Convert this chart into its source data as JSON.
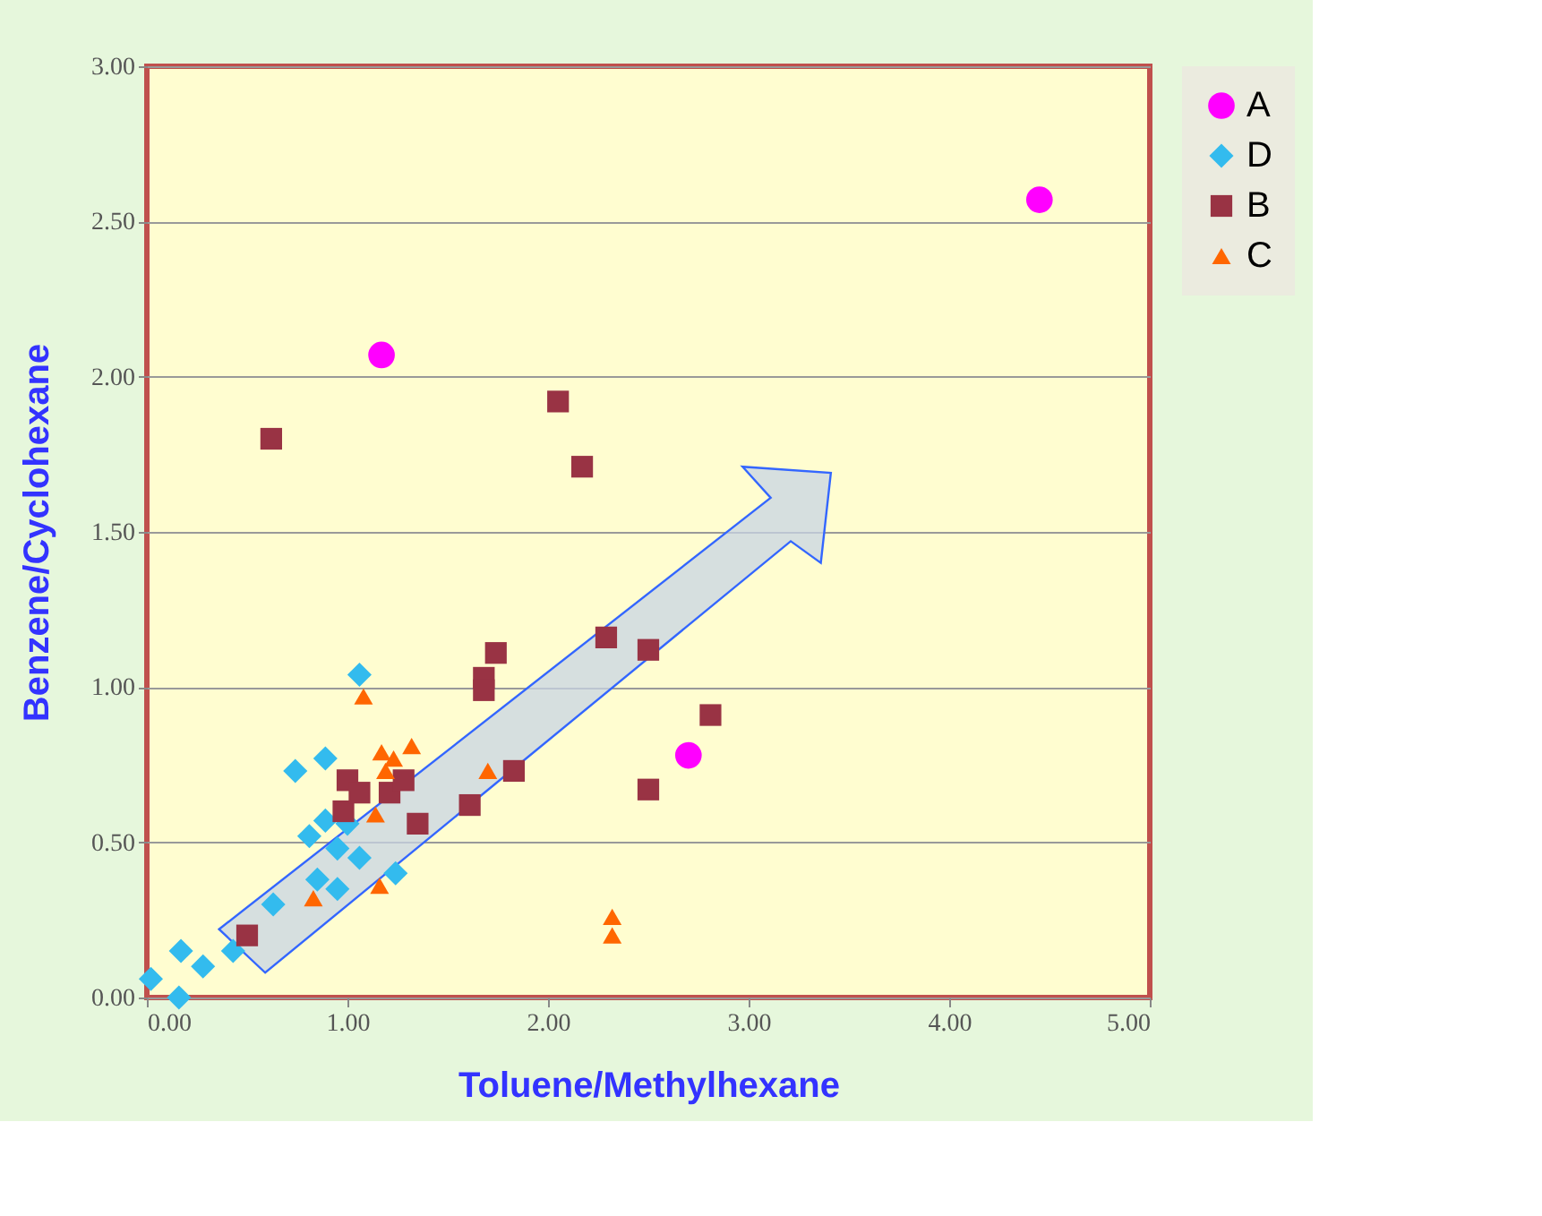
{
  "chart_data": {
    "type": "scatter",
    "xlabel": "Toluene/Methylhexane",
    "ylabel": "Benzene/Cyclohexane",
    "xlim": [
      0,
      5
    ],
    "ylim": [
      0,
      3
    ],
    "xticks": [
      {
        "value": 0,
        "label": "0.00"
      },
      {
        "value": 1,
        "label": "1.00"
      },
      {
        "value": 2,
        "label": "2.00"
      },
      {
        "value": 3,
        "label": "3.00"
      },
      {
        "value": 4,
        "label": "4.00"
      },
      {
        "value": 5,
        "label": "5.00"
      }
    ],
    "yticks": [
      {
        "value": 0,
        "label": "0.00"
      },
      {
        "value": 0.5,
        "label": "0.50"
      },
      {
        "value": 1,
        "label": "1.00"
      },
      {
        "value": 1.5,
        "label": "1.50"
      },
      {
        "value": 2,
        "label": "2.00"
      },
      {
        "value": 2.5,
        "label": "2.50"
      },
      {
        "value": 3,
        "label": "3.00"
      }
    ],
    "grid": "y",
    "legend": "right",
    "series": [
      {
        "name": "A",
        "color": "#ff00ff",
        "marker": "circle",
        "x": [
          1.17,
          4.45,
          2.7
        ],
        "values": [
          2.07,
          2.57,
          0.78
        ]
      },
      {
        "name": "D",
        "color": "#33bbee",
        "marker": "diamond",
        "x": [
          1.06,
          0.74,
          0.89,
          0.81,
          0.89,
          0.95,
          1.06,
          0.95,
          0.85,
          1.24,
          0.63,
          0.43,
          0.28,
          0.17,
          0.02,
          0.16,
          1.0
        ],
        "values": [
          1.04,
          0.73,
          0.77,
          0.52,
          0.57,
          0.48,
          0.45,
          0.35,
          0.38,
          0.4,
          0.3,
          0.15,
          0.1,
          0.15,
          0.06,
          0.0,
          0.56
        ]
      },
      {
        "name": "B",
        "color": "#993344",
        "marker": "square",
        "x": [
          0.62,
          2.05,
          2.17,
          0.5,
          1.0,
          0.98,
          1.06,
          1.21,
          1.28,
          1.35,
          1.61,
          1.68,
          1.74,
          1.68,
          1.83,
          2.29,
          2.5,
          2.81,
          2.5
        ],
        "values": [
          1.8,
          1.92,
          1.71,
          0.2,
          0.7,
          0.6,
          0.66,
          0.66,
          0.7,
          0.56,
          0.62,
          1.03,
          1.11,
          0.99,
          0.73,
          1.16,
          1.12,
          0.91,
          0.67
        ]
      },
      {
        "name": "C",
        "color": "#ff6600",
        "marker": "triangle",
        "x": [
          1.08,
          1.17,
          1.23,
          1.32,
          1.19,
          1.14,
          0.83,
          1.16,
          1.7,
          2.32,
          2.32
        ],
        "values": [
          0.97,
          0.79,
          0.77,
          0.81,
          0.73,
          0.59,
          0.32,
          0.36,
          0.73,
          0.26,
          0.2
        ]
      }
    ]
  }
}
